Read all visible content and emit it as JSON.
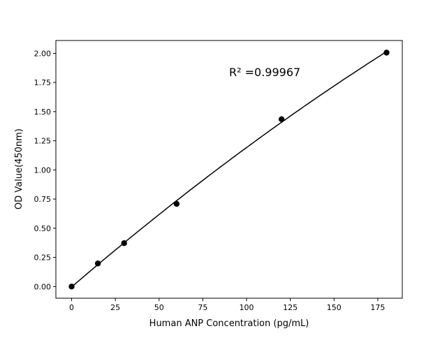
{
  "chart_data": {
    "type": "scatter",
    "title": "",
    "xlabel": "Human ANP Concentration (pg/mL)",
    "ylabel": "OD Value(450nm)",
    "xlim": [
      -9,
      189
    ],
    "ylim": [
      -0.1,
      2.11
    ],
    "xticks": [
      0,
      25,
      50,
      75,
      100,
      125,
      150,
      175
    ],
    "xtick_labels": [
      "0",
      "25",
      "50",
      "75",
      "100",
      "125",
      "150",
      "175"
    ],
    "yticks": [
      0,
      0.25,
      0.5,
      0.75,
      1.0,
      1.25,
      1.5,
      1.75,
      2.0
    ],
    "ytick_labels": [
      "0.00",
      "0.25",
      "0.50",
      "0.75",
      "1.00",
      "1.25",
      "1.50",
      "1.75",
      "2.00"
    ],
    "points": {
      "x": [
        0,
        15,
        30,
        60,
        120,
        180
      ],
      "y": [
        0.0,
        0.198,
        0.372,
        0.709,
        1.435,
        2.006
      ]
    },
    "fit_line": true,
    "annotation": "R² =0.99967",
    "grid": false,
    "colors": {
      "marker": "#000000",
      "line": "#000000"
    }
  }
}
